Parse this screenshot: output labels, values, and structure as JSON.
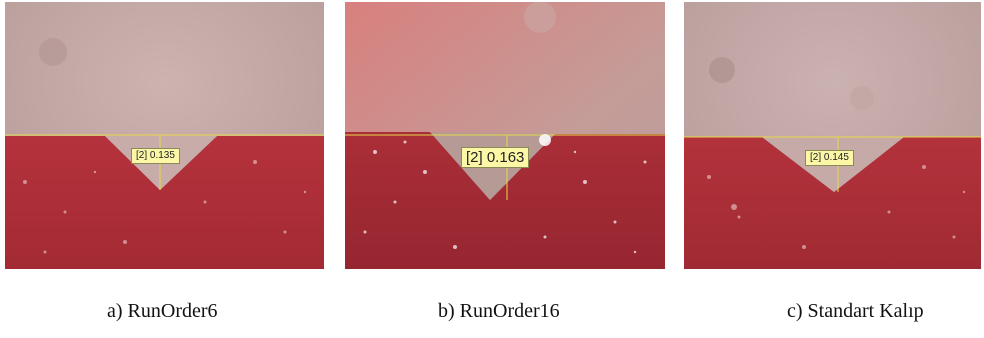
{
  "panels": [
    {
      "caption": "a) RunOrder6",
      "measurement": "[2] 0.135"
    },
    {
      "caption": "b) RunOrder16",
      "measurement": "[2] 0.163"
    },
    {
      "caption": "c) Standart Kalıp",
      "measurement": "[2] 0.145"
    }
  ],
  "colors": {
    "upper_surface": "#c4a8a6",
    "lower_surface": "#b23a42",
    "measure_line": "#e8d84a",
    "label_bg": "#fbf7a6"
  }
}
